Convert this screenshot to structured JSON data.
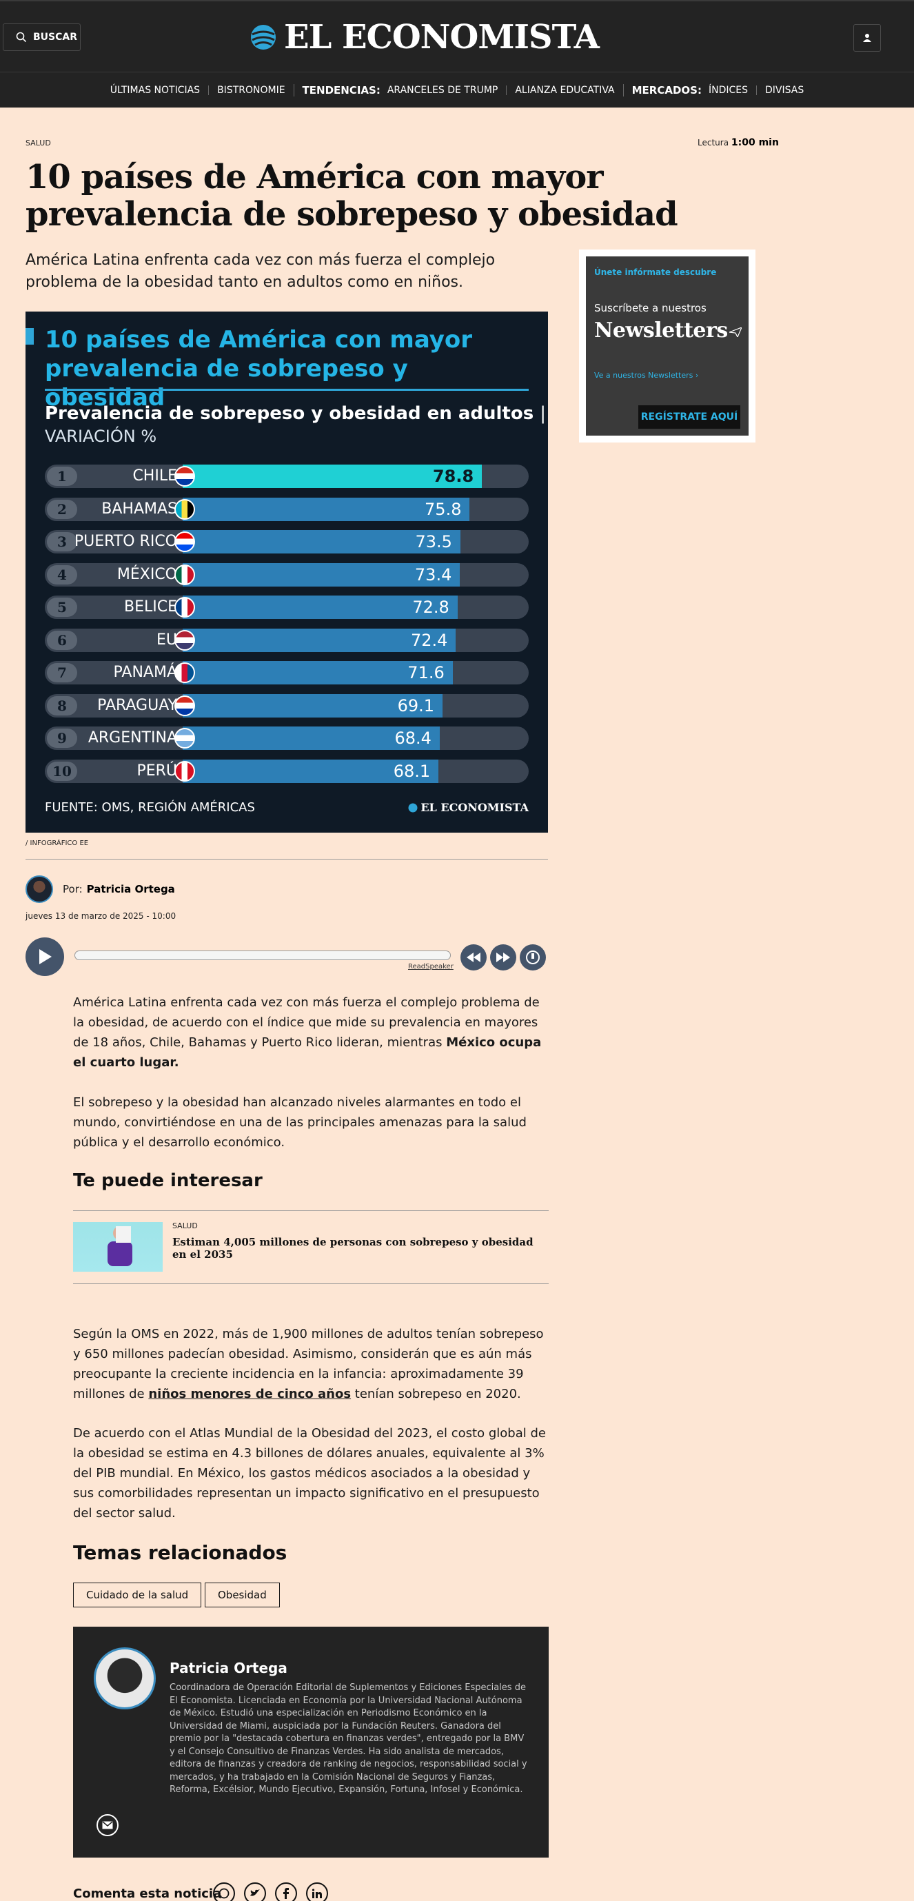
{
  "header": {
    "search_label": "BUSCAR",
    "logo_text": "EL ECONOMISTA"
  },
  "nav": {
    "items": [
      "ÚLTIMAS NOTICIAS",
      "BISTRONOMIE"
    ],
    "tendencias_label": "TENDENCIAS:",
    "tendencias": [
      "ARANCELES DE TRUMP",
      "ALIANZA EDUCATIVA"
    ],
    "mercados_label": "MERCADOS:",
    "mercados": [
      "ÍNDICES",
      "DIVISAS"
    ]
  },
  "article": {
    "section": "SALUD",
    "read_label": "Lectura",
    "read_time": "1:00 min",
    "headline": "10 países de América con mayor prevalencia de sobrepeso y obesidad",
    "dek": "América Latina enfrenta cada vez con más fuerza el complejo problema de la obesidad tanto en adultos como en niños.",
    "image_credit": "/ INFOGRÁFICO EE",
    "by_label": "Por:",
    "author": "Patricia Ortega",
    "date": "jueves 13 de marzo de 2025 - 10:00",
    "readspeaker": "ReadSpeaker",
    "p1_a": "América Latina enfrenta cada vez con más fuerza el complejo problema de la obesidad, de acuerdo con el índice que mide su prevalencia en mayores de 18 años, Chile, Bahamas y Puerto Rico lideran, mientras ",
    "p1_b": "México ocupa el cuarto lugar.",
    "p2": "El sobrepeso y la obesidad han alcanzado niveles alarmantes en todo el mundo, convirtiéndose en una de las principales amenazas para la salud pública y el desarrollo económico.",
    "interest_heading": "Te puede interesar",
    "related_section": "SALUD",
    "related_title": "Estiman 4,005 millones de personas con sobrepeso y obesidad en el 2035",
    "p3_a": "Según la OMS en 2022, más de 1,900 millones de adultos tenían sobrepeso y 650 millones padecían obesidad. Asimismo, considerán que es aún más preocupante la creciente incidencia en la infancia: aproximadamente 39 millones de ",
    "p3_link": "niños menores de cinco años",
    "p3_b": " tenían sobrepeso en 2020.",
    "p4": "De acuerdo con el Atlas Mundial de la Obesidad del 2023, el costo global de la obesidad se estima en 4.3 billones de dólares anuales, equivalente al 3% del PIB mundial. En México, los gastos médicos asociados a la obesidad y sus comorbilidades representan un impacto significativo en el presupuesto del sector salud.",
    "temas_heading": "Temas relacionados",
    "tags": [
      "Cuidado de la salud",
      "Obesidad"
    ],
    "author_box_name": "Patricia Ortega",
    "author_bio": "Coordinadora de Operación Editorial de Suplementos y Ediciones Especiales de El Economista. Licenciada en Economía por la Universidad Nacional Autónoma de México. Estudió una especialización en Periodismo Económico en la Universidad de Miami, auspiciada por la Fundación Reuters. Ganadora del premio por la \"destacada cobertura en finanzas verdes\", entregado por la BMV y el Consejo Consultivo de Finanzas Verdes. Ha sido analista de mercados, editora de finanzas y creadora de ranking de negocios, responsabilidad social y mercados, y ha trabajado en la Comisión Nacional de Seguros y Fianzas, Reforma, Excélsior, Mundo Ejecutivo, Expansión, Fortuna, Infosel y Económica.",
    "comment_label": "Comenta esta noticia"
  },
  "infographic": {
    "title": "10 países de América con mayor prevalencia de sobrepeso y obesidad",
    "subtitle": "Prevalencia de sobrepeso y obesidad en adultos",
    "subtitle_sep": "|",
    "unit": "VARIACIÓN %",
    "source": "FUENTE: OMS, REGIÓN AMÉRICAS",
    "logo": "EL ECONOMISTA",
    "colors": {
      "top": "#1fd0d4",
      "bar": "#2d7fb6",
      "track": "#3a4452",
      "title": "#25b5e6"
    }
  },
  "chart_data": {
    "type": "bar",
    "title": "10 países de América con mayor prevalencia de sobrepeso y obesidad",
    "subtitle": "Prevalencia de sobrepeso y obesidad en adultos | VARIACIÓN %",
    "ranks": [
      "1",
      "2",
      "3",
      "4",
      "5",
      "6",
      "7",
      "8",
      "9",
      "10"
    ],
    "categories": [
      "CHILE",
      "BAHAMAS",
      "PUERTO RICO",
      "MÉXICO",
      "BELICE",
      "EU",
      "PANAMÁ",
      "PARAGUAY",
      "ARGENTINA",
      "PERÚ"
    ],
    "values": [
      78.8,
      75.8,
      73.5,
      73.4,
      72.8,
      72.4,
      71.6,
      69.1,
      68.4,
      68.1
    ],
    "value_labels": [
      "78.8",
      "75.8",
      "73.5",
      "73.4",
      "72.8",
      "72.4",
      "71.6",
      "69.1",
      "68.4",
      "68.1"
    ],
    "orientation": "horizontal",
    "source": "FUENTE: OMS, REGIÓN AMÉRICAS"
  },
  "ad": {
    "kicker": "Únete infórmate descubre",
    "line1": "Suscríbete a nuestros",
    "line2": "Newsletters",
    "link": "Ve a nuestros Newsletters",
    "cta": "REGÍSTRATE AQUÍ"
  }
}
